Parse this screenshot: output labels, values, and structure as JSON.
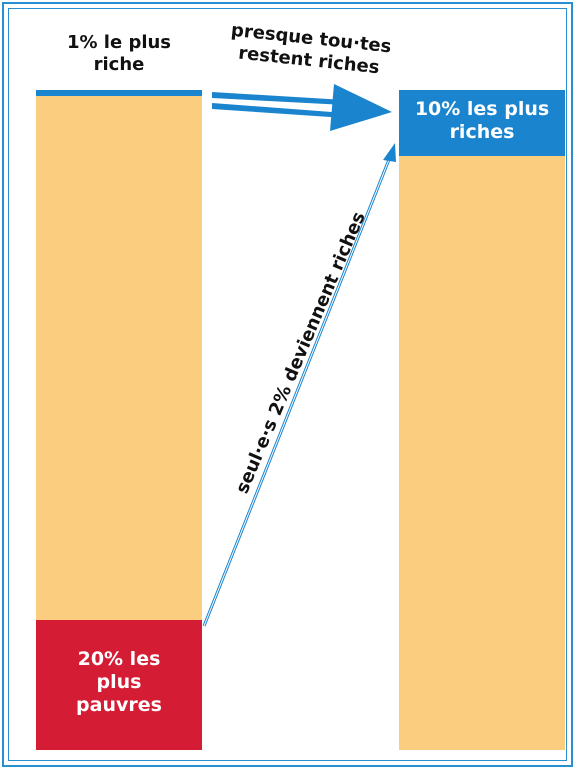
{
  "labels": {
    "top_left": "1% le plus\nriche",
    "arrow_top": "presque tou·tes\nrestent riches",
    "right_top": "10% les plus\nriches",
    "diagonal": "seul·e·s 2% deviennent riches",
    "bottom_left": "20% les\nplus\npauvres"
  },
  "colors": {
    "bar": "#fbcd7e",
    "rich": "#1a84cf",
    "poor": "#d41c35",
    "frame": "#2a8fd0"
  }
}
